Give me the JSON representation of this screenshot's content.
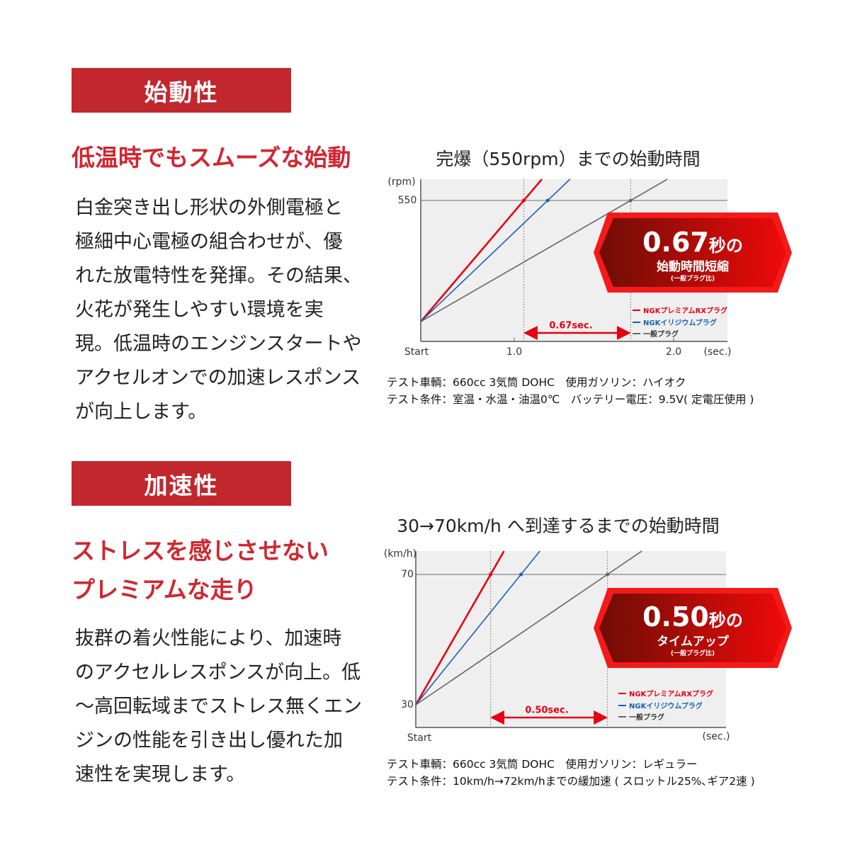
{
  "sections": [
    {
      "header": "始動性",
      "subheading": [
        "低温時でもスムーズな始動"
      ],
      "body_lines": [
        "白金突き出し形状の外側電極と",
        "極細中心電極の組合わせが、優",
        "れた放電特性を発揮。その結果、",
        "火花が発生しやすい環境を実",
        "現。低温時のエンジンスタートや",
        "アクセルオンでの加速レスポンス",
        "が向上します。"
      ]
    },
    {
      "header": "加速性",
      "subheading": [
        "ストレスを感じさせない",
        "プレミアムな走り"
      ],
      "body_lines": [
        "抜群の着火性能により、加速時",
        "のアクセルレスポンスが向上。低",
        "～高回転域までストレス無くエン",
        "ジンの性能を引き出し優れた加",
        "速性を実現します。"
      ]
    }
  ],
  "chart_data": [
    {
      "type": "line",
      "title": "完爆（550rpm）までの始動時間",
      "ylabel": "(rpm)",
      "xlabel": "(sec.)",
      "x_start_label": "Start",
      "x_ticks": [
        "1.0",
        "2.0"
      ],
      "y_ticks": [
        "550"
      ],
      "target_y": 550,
      "series": [
        {
          "name": "NGKプレミアムRXプラグ",
          "color": "#e60012",
          "time_to_target": 1.06
        },
        {
          "name": "NGKイリジウムプラグ",
          "color": "#1a5fb4",
          "time_to_target": 1.21
        },
        {
          "name": "一般プラグ",
          "color": "#666666",
          "time_to_target": 1.73
        }
      ],
      "gap_label": "0.67sec.",
      "badge": {
        "value": "0.67",
        "unit": "秒の",
        "line2": "始動時間短縮",
        "line3": "(一般プラグ比)"
      },
      "legend_position": "bottom-right",
      "grid": false,
      "notes": [
        "テスト車輌：660cc 3気筒 DOHC　使用ガソリン：ハイオク",
        "テスト条件：室温・水温・油温0℃　バッテリー電圧：9.5V( 定電圧使用 )"
      ]
    },
    {
      "type": "line",
      "title": "30→70km/h へ到達するまでの始動時間",
      "ylabel": "(km/h)",
      "xlabel": "(sec.)",
      "x_start_label": "Start",
      "y_ticks": [
        "70",
        "30"
      ],
      "start_y": 30,
      "target_y": 70,
      "series": [
        {
          "name": "NGKプレミアムRXプラグ",
          "color": "#e60012",
          "time_to_target": 0.32
        },
        {
          "name": "NGKイリジウムプラグ",
          "color": "#1a5fb4",
          "time_to_target": 0.45
        },
        {
          "name": "一般プラグ",
          "color": "#666666",
          "time_to_target": 0.82
        }
      ],
      "gap_label": "0.50sec.",
      "badge": {
        "value": "0.50",
        "unit": "秒の",
        "line2": "タイムアップ",
        "line3": "(一般プラグ比)"
      },
      "legend_position": "bottom-right",
      "grid": false,
      "notes": [
        "テスト車輌：660cc 3気筒 DOHC　使用ガソリン：レギュラー",
        "テスト条件：10km/h→72km/hまでの緩加速 ( スロットル25%､ギア2速 )"
      ]
    }
  ]
}
